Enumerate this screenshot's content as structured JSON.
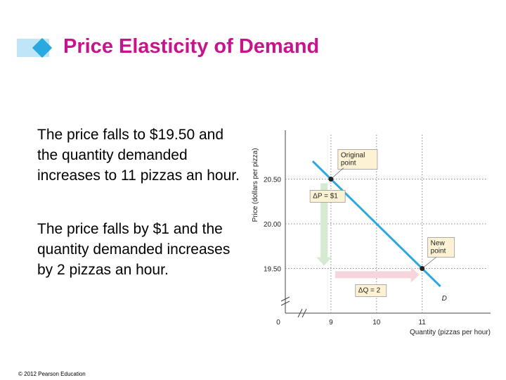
{
  "title": "Price Elasticity of Demand",
  "paragraphs": [
    "The price falls to $19.50 and the quantity demanded increases to 11 pizzas an hour.",
    "The price falls by $1 and the quantity demanded increases by 2 pizzas an hour."
  ],
  "footer": "© 2012 Pearson Education",
  "chart_data": {
    "type": "line",
    "xlabel": "Quantity (pizzas per hour)",
    "ylabel": "Price (dollars per pizza)",
    "origin_label": "0",
    "x_ticks": [
      9,
      10,
      11
    ],
    "x_tick_labels": [
      "9",
      "10",
      "11"
    ],
    "y_ticks": [
      19.5,
      20.0,
      20.5
    ],
    "y_tick_labels": [
      "19.50",
      "20.00",
      "20.50"
    ],
    "xlim": [
      8,
      12.5
    ],
    "ylim": [
      19.0,
      21.0
    ],
    "axis_breaks": true,
    "series": [
      {
        "name": "D",
        "x": [
          8.6,
          11.4
        ],
        "y": [
          20.7,
          19.3
        ],
        "color": "#2aa8e0"
      }
    ],
    "points": [
      {
        "x": 9,
        "y": 20.5,
        "label": [
          "Original",
          "point"
        ]
      },
      {
        "x": 11,
        "y": 19.5,
        "label": [
          "New",
          "point"
        ]
      }
    ],
    "delta_p": {
      "label": "ΔP = $1",
      "from": 20.5,
      "to": 19.5,
      "x": 8.85,
      "color": "#d6ead2"
    },
    "delta_q": {
      "label": "ΔQ = 2",
      "from": 9,
      "to": 11,
      "y": 19.43,
      "color": "#f6d5dc"
    },
    "curve_label": "D"
  }
}
